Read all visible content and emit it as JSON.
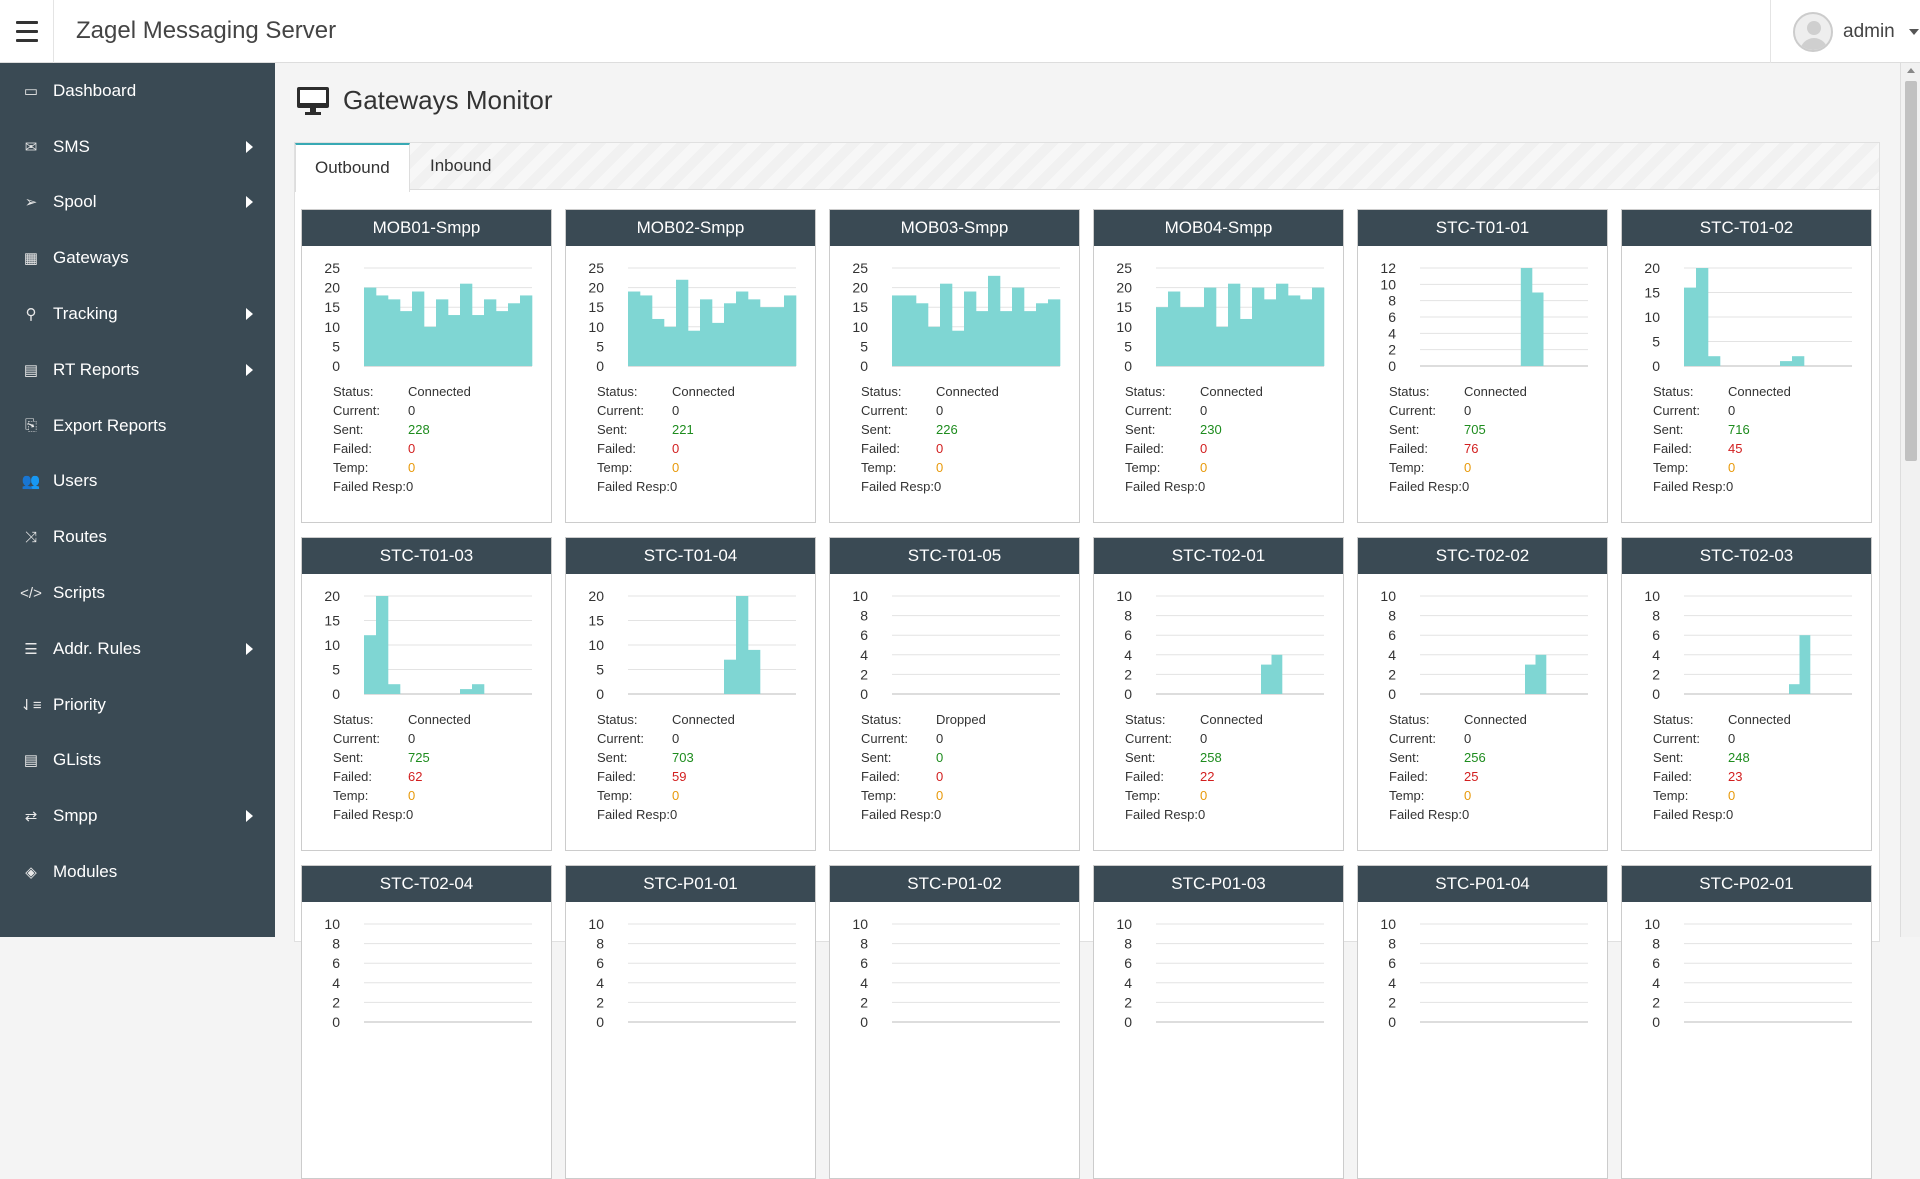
{
  "app": {
    "title": "Zagel Messaging Server",
    "user": "admin"
  },
  "sidebar": [
    {
      "label": "Dashboard",
      "icon": "monitor-icon",
      "glyph": "▭",
      "sub": false
    },
    {
      "label": "SMS",
      "icon": "envelope-icon",
      "glyph": "✉",
      "sub": true
    },
    {
      "label": "Spool",
      "icon": "paper-plane-icon",
      "glyph": "➢",
      "sub": true
    },
    {
      "label": "Gateways",
      "icon": "cubes-icon",
      "glyph": "▦",
      "sub": false
    },
    {
      "label": "Tracking",
      "icon": "search-icon",
      "glyph": "⚲",
      "sub": true
    },
    {
      "label": "RT Reports",
      "icon": "file-icon",
      "glyph": "▤",
      "sub": true
    },
    {
      "label": "Export Reports",
      "icon": "copy-icon",
      "glyph": "⎘",
      "sub": false
    },
    {
      "label": "Users",
      "icon": "users-icon",
      "glyph": "👥",
      "sub": false
    },
    {
      "label": "Routes",
      "icon": "random-icon",
      "glyph": "⤨",
      "sub": false
    },
    {
      "label": "Scripts",
      "icon": "code-icon",
      "glyph": "</>",
      "sub": false
    },
    {
      "label": "Addr. Rules",
      "icon": "list-icon",
      "glyph": "☰",
      "sub": true
    },
    {
      "label": "Priority",
      "icon": "sort-amount-icon",
      "glyph": "⇃≡",
      "sub": false
    },
    {
      "label": "GLists",
      "icon": "list-alt-icon",
      "glyph": "▤",
      "sub": false
    },
    {
      "label": "Smpp",
      "icon": "exchange-icon",
      "glyph": "⇄",
      "sub": true
    },
    {
      "label": "Modules",
      "icon": "cubes-icon",
      "glyph": "◈",
      "sub": false
    }
  ],
  "page": {
    "title": "Gateways Monitor"
  },
  "tabs": [
    "Outbound",
    "Inbound"
  ],
  "labels": {
    "status": "Status:",
    "current": "Current:",
    "sent": "Sent:",
    "failed": "Failed:",
    "temp": "Temp:",
    "failed_resp": "Failed Resp:"
  },
  "gateways": [
    {
      "name": "MOB01-Smpp",
      "status": "Connected",
      "current": "0",
      "sent": "228",
      "failed": "0",
      "temp": "0",
      "failed_resp": "0"
    },
    {
      "name": "MOB02-Smpp",
      "status": "Connected",
      "current": "0",
      "sent": "221",
      "failed": "0",
      "temp": "0",
      "failed_resp": "0"
    },
    {
      "name": "MOB03-Smpp",
      "status": "Connected",
      "current": "0",
      "sent": "226",
      "failed": "0",
      "temp": "0",
      "failed_resp": "0"
    },
    {
      "name": "MOB04-Smpp",
      "status": "Connected",
      "current": "0",
      "sent": "230",
      "failed": "0",
      "temp": "0",
      "failed_resp": "0"
    },
    {
      "name": "STC-T01-01",
      "status": "Connected",
      "current": "0",
      "sent": "705",
      "failed": "76",
      "temp": "0",
      "failed_resp": "0"
    },
    {
      "name": "STC-T01-02",
      "status": "Connected",
      "current": "0",
      "sent": "716",
      "failed": "45",
      "temp": "0",
      "failed_resp": "0"
    },
    {
      "name": "STC-T01-03",
      "status": "Connected",
      "current": "0",
      "sent": "725",
      "failed": "62",
      "temp": "0",
      "failed_resp": "0"
    },
    {
      "name": "STC-T01-04",
      "status": "Connected",
      "current": "0",
      "sent": "703",
      "failed": "59",
      "temp": "0",
      "failed_resp": "0"
    },
    {
      "name": "STC-T01-05",
      "status": "Dropped",
      "current": "0",
      "sent": "0",
      "failed": "0",
      "temp": "0",
      "failed_resp": "0"
    },
    {
      "name": "STC-T02-01",
      "status": "Connected",
      "current": "0",
      "sent": "258",
      "failed": "22",
      "temp": "0",
      "failed_resp": "0"
    },
    {
      "name": "STC-T02-02",
      "status": "Connected",
      "current": "0",
      "sent": "256",
      "failed": "25",
      "temp": "0",
      "failed_resp": "0"
    },
    {
      "name": "STC-T02-03",
      "status": "Connected",
      "current": "0",
      "sent": "248",
      "failed": "23",
      "temp": "0",
      "failed_resp": "0"
    },
    {
      "name": "STC-T02-04"
    },
    {
      "name": "STC-P01-01"
    },
    {
      "name": "STC-P01-02"
    },
    {
      "name": "STC-P01-03"
    },
    {
      "name": "STC-P01-04"
    },
    {
      "name": "STC-P02-01"
    }
  ],
  "colors": {
    "bar": "#7fd6d3",
    "sent": "#1e8c1e",
    "failed": "#d21f1f",
    "temp": "#e89a0c",
    "header": "#3a4a54"
  },
  "chart_data": [
    {
      "type": "bar",
      "title": "MOB01-Smpp",
      "ylim": [
        0,
        25
      ],
      "yticks": [
        0,
        5,
        10,
        15,
        20,
        25
      ],
      "values": [
        20,
        18,
        17,
        14,
        19,
        10,
        17,
        13,
        21,
        13,
        17,
        14,
        16,
        18
      ]
    },
    {
      "type": "bar",
      "title": "MOB02-Smpp",
      "ylim": [
        0,
        25
      ],
      "yticks": [
        0,
        5,
        10,
        15,
        20,
        25
      ],
      "values": [
        19,
        18,
        12,
        10,
        22,
        9,
        17,
        11,
        16,
        19,
        17,
        15,
        15,
        18
      ]
    },
    {
      "type": "bar",
      "title": "MOB03-Smpp",
      "ylim": [
        0,
        25
      ],
      "yticks": [
        0,
        5,
        10,
        15,
        20,
        25
      ],
      "values": [
        18,
        18,
        16,
        10,
        21,
        9,
        19,
        14,
        23,
        14,
        20,
        14,
        16,
        17
      ]
    },
    {
      "type": "bar",
      "title": "MOB04-Smpp",
      "ylim": [
        0,
        25
      ],
      "yticks": [
        0,
        5,
        10,
        15,
        20,
        25
      ],
      "values": [
        15,
        19,
        15,
        15,
        20,
        10,
        21,
        12,
        20,
        17,
        21,
        18,
        17,
        20
      ]
    },
    {
      "type": "bar",
      "title": "STC-T01-01",
      "ylim": [
        0,
        12
      ],
      "yticks": [
        0,
        2,
        4,
        6,
        8,
        10,
        12
      ],
      "values": [
        0,
        0,
        0,
        0,
        0,
        0,
        0,
        0,
        0,
        12,
        9,
        0,
        0,
        0,
        0
      ]
    },
    {
      "type": "bar",
      "title": "STC-T01-02",
      "ylim": [
        0,
        20
      ],
      "yticks": [
        0,
        5,
        10,
        15,
        20
      ],
      "values": [
        16,
        20,
        2,
        0,
        0,
        0,
        0,
        0,
        1,
        2,
        0,
        0,
        0,
        0
      ]
    },
    {
      "type": "bar",
      "title": "STC-T01-03",
      "ylim": [
        0,
        20
      ],
      "yticks": [
        0,
        5,
        10,
        15,
        20
      ],
      "values": [
        12,
        20,
        2,
        0,
        0,
        0,
        0,
        0,
        1,
        2,
        0,
        0,
        0,
        0
      ]
    },
    {
      "type": "bar",
      "title": "STC-T01-04",
      "ylim": [
        0,
        20
      ],
      "yticks": [
        0,
        5,
        10,
        15,
        20
      ],
      "values": [
        0,
        0,
        0,
        0,
        0,
        0,
        0,
        0,
        7,
        20,
        9,
        0,
        0,
        0
      ]
    },
    {
      "type": "bar",
      "title": "STC-T01-05",
      "ylim": [
        0,
        10
      ],
      "yticks": [
        0,
        2,
        4,
        6,
        8,
        10
      ],
      "values": [
        0,
        0,
        0,
        0,
        0,
        0,
        0,
        0,
        0,
        0,
        0,
        0,
        0,
        0
      ]
    },
    {
      "type": "bar",
      "title": "STC-T02-01",
      "ylim": [
        0,
        10
      ],
      "yticks": [
        0,
        2,
        4,
        6,
        8,
        10
      ],
      "values": [
        0,
        0,
        0,
        0,
        0,
        0,
        0,
        0,
        0,
        0,
        3,
        4,
        0,
        0,
        0,
        0
      ]
    },
    {
      "type": "bar",
      "title": "STC-T02-02",
      "ylim": [
        0,
        10
      ],
      "yticks": [
        0,
        2,
        4,
        6,
        8,
        10
      ],
      "values": [
        0,
        0,
        0,
        0,
        0,
        0,
        0,
        0,
        0,
        0,
        3,
        4,
        0,
        0,
        0,
        0
      ]
    },
    {
      "type": "bar",
      "title": "STC-T02-03",
      "ylim": [
        0,
        10
      ],
      "yticks": [
        0,
        2,
        4,
        6,
        8,
        10
      ],
      "values": [
        0,
        0,
        0,
        0,
        0,
        0,
        0,
        0,
        0,
        0,
        1,
        6,
        0,
        0,
        0,
        0
      ]
    },
    {
      "type": "bar",
      "title": "STC-T02-04",
      "ylim": [
        0,
        10
      ],
      "yticks": [
        0,
        2,
        4,
        6,
        8,
        10
      ],
      "values": []
    },
    {
      "type": "bar",
      "title": "STC-P01-01",
      "ylim": [
        0,
        10
      ],
      "yticks": [
        0,
        2,
        4,
        6,
        8,
        10
      ],
      "values": []
    },
    {
      "type": "bar",
      "title": "STC-P01-02",
      "ylim": [
        0,
        10
      ],
      "yticks": [
        0,
        2,
        4,
        6,
        8,
        10
      ],
      "values": []
    },
    {
      "type": "bar",
      "title": "STC-P01-03",
      "ylim": [
        0,
        10
      ],
      "yticks": [
        0,
        2,
        4,
        6,
        8,
        10
      ],
      "values": []
    },
    {
      "type": "bar",
      "title": "STC-P01-04",
      "ylim": [
        0,
        10
      ],
      "yticks": [
        0,
        2,
        4,
        6,
        8,
        10
      ],
      "values": []
    },
    {
      "type": "bar",
      "title": "STC-P02-01",
      "ylim": [
        0,
        10
      ],
      "yticks": [
        0,
        2,
        4,
        6,
        8,
        10
      ],
      "values": []
    }
  ]
}
